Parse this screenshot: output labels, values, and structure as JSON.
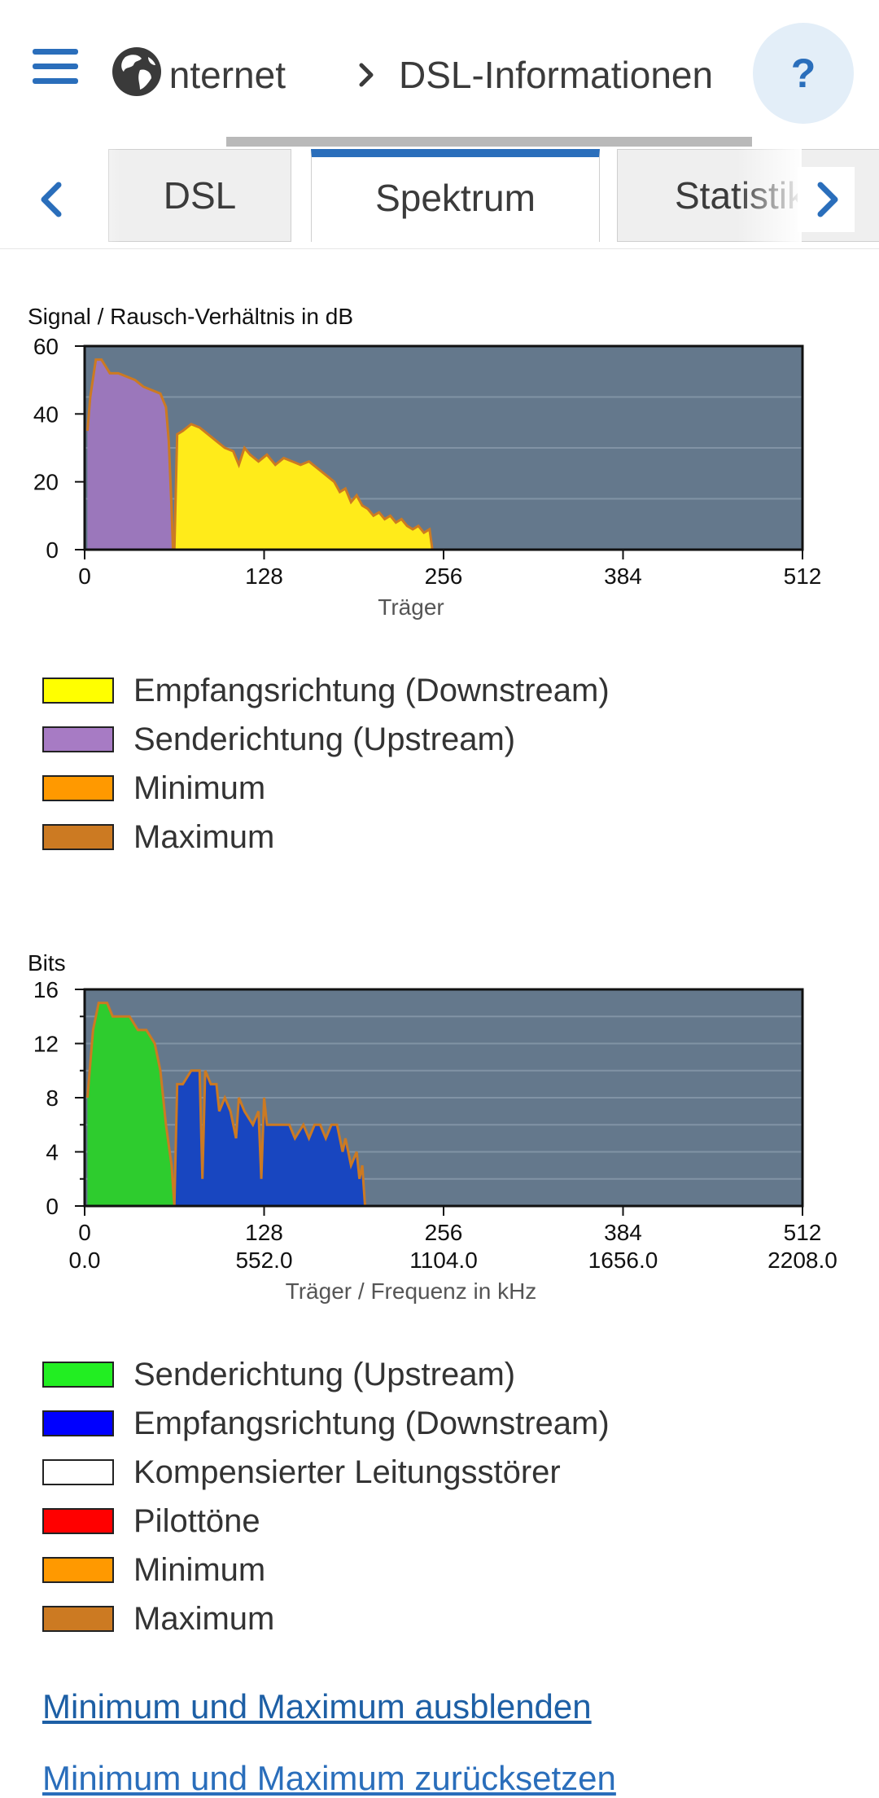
{
  "header": {
    "breadcrumb_first": "Internet",
    "breadcrumb_second": "DSL-Informationen",
    "help_label": "?"
  },
  "tabs": [
    {
      "label": "DSL"
    },
    {
      "label": "Spektrum"
    },
    {
      "label": "Statistik"
    }
  ],
  "snr_chart": {
    "chart_data": {
      "type": "area",
      "title": "Signal / Rausch-Verhältnis in dB",
      "xlabel": "Träger",
      "ylim": [
        0,
        60
      ],
      "xlim": [
        0,
        512
      ],
      "xticks": [
        "0",
        "128",
        "256",
        "384",
        "512"
      ],
      "yticks": [
        "0",
        "20",
        "40",
        "60"
      ],
      "series": [
        {
          "name": "Senderichtung (Upstream)",
          "color": "#9b77bb",
          "x": [
            2,
            4,
            8,
            12,
            18,
            24,
            30,
            36,
            42,
            48,
            54,
            58,
            60,
            62,
            63
          ],
          "y": [
            35,
            45,
            56,
            56,
            52,
            52,
            51,
            50,
            48,
            47,
            46,
            42,
            32,
            12,
            0
          ]
        },
        {
          "name": "Empfangsrichtung (Downstream)",
          "color": "#ffeb1a",
          "x": [
            64,
            66,
            70,
            76,
            82,
            88,
            94,
            100,
            106,
            110,
            114,
            118,
            124,
            130,
            136,
            142,
            148,
            154,
            160,
            166,
            172,
            178,
            182,
            186,
            190,
            194,
            198,
            202,
            206,
            210,
            214,
            218,
            222,
            226,
            230,
            234,
            238,
            242,
            246,
            248
          ],
          "y": [
            0,
            34,
            35,
            37,
            36,
            34,
            32,
            30,
            29,
            25,
            30,
            28,
            26,
            28,
            25,
            27,
            26,
            25,
            26,
            24,
            22,
            20,
            17,
            18,
            14,
            16,
            13,
            12,
            10,
            11,
            9,
            10,
            8,
            9,
            7,
            6,
            7,
            5,
            6,
            0
          ]
        }
      ],
      "min_color": "#ff9900",
      "max_color": "#cc7a22",
      "plot_bg": "#64788c"
    },
    "legend": [
      {
        "label": "Empfangsrichtung (Downstream)",
        "color": "#ffff00"
      },
      {
        "label": "Senderichtung (Upstream)",
        "color": "#a77bc4"
      },
      {
        "label": "Minimum",
        "color": "#ff9900"
      },
      {
        "label": "Maximum",
        "color": "#cc7a22"
      }
    ]
  },
  "bits_chart": {
    "chart_data": {
      "type": "area",
      "title": "Bits",
      "xlabel": "Träger / Frequenz in kHz",
      "ylim": [
        0,
        16
      ],
      "xlim": [
        0,
        512
      ],
      "xticks": [
        "0",
        "128",
        "256",
        "384",
        "512"
      ],
      "xticks2": [
        "0.0",
        "552.0",
        "1104.0",
        "1656.0",
        "2208.0"
      ],
      "yticks": [
        "0",
        "4",
        "8",
        "12",
        "16"
      ],
      "series": [
        {
          "name": "Senderichtung (Upstream)",
          "color": "#2ecc2e",
          "x": [
            2,
            6,
            10,
            16,
            20,
            26,
            32,
            38,
            44,
            50,
            54,
            58,
            62,
            64
          ],
          "y": [
            8,
            13,
            15,
            15,
            14,
            14,
            14,
            13,
            13,
            12,
            10,
            6,
            3,
            0
          ]
        },
        {
          "name": "Empfangsrichtung (Downstream)",
          "color": "#1846c0",
          "x": [
            64,
            66,
            70,
            76,
            82,
            84,
            86,
            90,
            94,
            96,
            100,
            104,
            108,
            110,
            114,
            120,
            124,
            126,
            128,
            130,
            134,
            140,
            146,
            150,
            156,
            160,
            164,
            168,
            172,
            176,
            180,
            184,
            186,
            190,
            194,
            196,
            198,
            200
          ],
          "y": [
            0,
            9,
            9,
            10,
            10,
            2,
            10,
            9,
            9,
            7,
            8,
            7,
            5,
            8,
            7,
            6,
            7,
            2,
            8,
            6,
            6,
            6,
            6,
            5,
            6,
            5,
            6,
            6,
            5,
            6,
            6,
            4,
            5,
            3,
            4,
            2,
            3,
            0
          ]
        }
      ],
      "min_color": "#ff9900",
      "max_color": "#cc7a22",
      "plot_bg": "#64788c"
    },
    "legend": [
      {
        "label": "Senderichtung (Upstream)",
        "color": "#22ee22"
      },
      {
        "label": "Empfangsrichtung (Downstream)",
        "color": "#0000ff"
      },
      {
        "label": "Kompensierter Leitungsstörer",
        "color": "#ffffff"
      },
      {
        "label": "Pilottöne",
        "color": "#ff0000"
      },
      {
        "label": "Minimum",
        "color": "#ff9900"
      },
      {
        "label": "Maximum",
        "color": "#cc7a22"
      }
    ]
  },
  "links": {
    "hide_minmax": "Minimum und Maximum ausblenden",
    "reset_minmax": "Minimum und Maximum zurücksetzen"
  }
}
